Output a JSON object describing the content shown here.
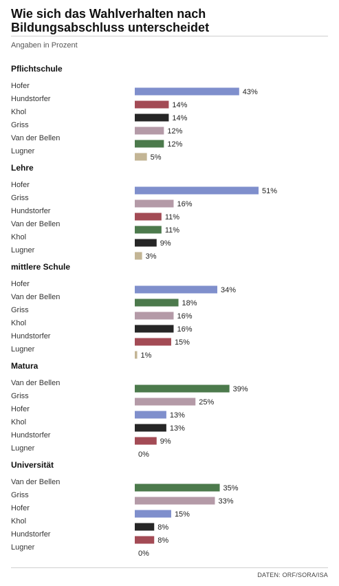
{
  "header": {
    "title_line1": "Wie sich das Wahlverhalten nach",
    "title_line2": "Bildungsabschluss unterscheidet",
    "subtitle": "Angaben in Prozent"
  },
  "footer": {
    "source": "DATEN: ORF/SORA/ISA"
  },
  "colors": {
    "Hofer": "#7f8fcc",
    "Hundstorfer": "#a34b55",
    "Khol": "#262626",
    "Griss": "#b49aa7",
    "Van der Bellen": "#4c7a4c",
    "Lugner": "#c3b595"
  },
  "chart_data": {
    "type": "bar",
    "orientation": "horizontal",
    "unit": "%",
    "groups": [
      {
        "name": "Pflichtschule",
        "bars": [
          {
            "label": "Hofer",
            "value": 43
          },
          {
            "label": "Hundstorfer",
            "value": 14
          },
          {
            "label": "Khol",
            "value": 14
          },
          {
            "label": "Griss",
            "value": 12
          },
          {
            "label": "Van der Bellen",
            "value": 12
          },
          {
            "label": "Lugner",
            "value": 5
          }
        ]
      },
      {
        "name": "Lehre",
        "bars": [
          {
            "label": "Hofer",
            "value": 51
          },
          {
            "label": "Griss",
            "value": 16
          },
          {
            "label": "Hundstorfer",
            "value": 11
          },
          {
            "label": "Van der Bellen",
            "value": 11
          },
          {
            "label": "Khol",
            "value": 9
          },
          {
            "label": "Lugner",
            "value": 3
          }
        ]
      },
      {
        "name": "mittlere Schule",
        "bars": [
          {
            "label": "Hofer",
            "value": 34
          },
          {
            "label": "Van der Bellen",
            "value": 18
          },
          {
            "label": "Griss",
            "value": 16
          },
          {
            "label": "Khol",
            "value": 16
          },
          {
            "label": "Hundstorfer",
            "value": 15
          },
          {
            "label": "Lugner",
            "value": 1
          }
        ]
      },
      {
        "name": "Matura",
        "bars": [
          {
            "label": "Van der Bellen",
            "value": 39
          },
          {
            "label": "Griss",
            "value": 25
          },
          {
            "label": "Hofer",
            "value": 13
          },
          {
            "label": "Khol",
            "value": 13
          },
          {
            "label": "Hundstorfer",
            "value": 9
          },
          {
            "label": "Lugner",
            "value": 0
          }
        ]
      },
      {
        "name": "Universität",
        "bars": [
          {
            "label": "Van der Bellen",
            "value": 35
          },
          {
            "label": "Griss",
            "value": 33
          },
          {
            "label": "Hofer",
            "value": 15
          },
          {
            "label": "Khol",
            "value": 8
          },
          {
            "label": "Hundstorfer",
            "value": 8
          },
          {
            "label": "Lugner",
            "value": 0
          }
        ]
      }
    ]
  }
}
